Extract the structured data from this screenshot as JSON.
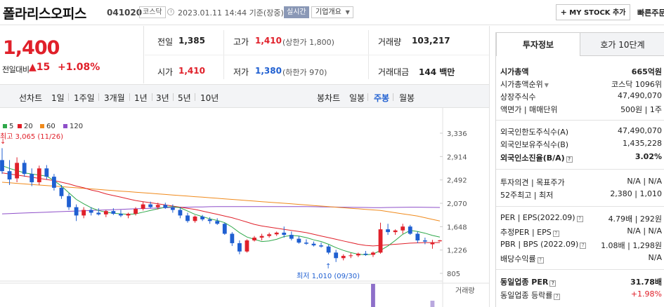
{
  "header": {
    "company_name": "폴라리스오피스",
    "stock_code": "041020",
    "market": "코스닥",
    "datetime": "2023.01.11 14:44 기준(장중)",
    "realtime": "실시간",
    "company_overview": "기업개요",
    "my_stock_button": "MY STOCK 추가",
    "quick_search": "빠른주문"
  },
  "price": {
    "current": "1,400",
    "change_label": "전일대비",
    "change_value": "▲15",
    "change_pct": "+1.08%"
  },
  "quote": {
    "prev_label": "전일",
    "prev_value": "1,385",
    "high_label": "고가",
    "high_value": "1,410",
    "upper_limit": "(상한가 1,800)",
    "volume_label": "거래량",
    "volume_value": "103,217",
    "open_label": "시가",
    "open_value": "1,410",
    "low_label": "저가",
    "low_value": "1,380",
    "lower_limit": "(하한가 970)",
    "amount_label": "거래대금",
    "amount_value": "144 백만"
  },
  "period_bar": {
    "line_chart_label": "선차트",
    "line_periods": [
      "1일",
      "1주일",
      "3개월",
      "1년",
      "3년",
      "5년",
      "10년"
    ],
    "candle_chart_label": "봉차트",
    "candle_periods": [
      "일봉",
      "주봉",
      "월봉"
    ],
    "selected_candle": "주봉"
  },
  "chart_data": {
    "type": "candlestick",
    "interval": "weekly",
    "ma_legend": [
      {
        "name": "5",
        "color": "#2ea84a"
      },
      {
        "name": "20",
        "color": "#e0202a"
      },
      {
        "name": "60",
        "color": "#f08a1c"
      },
      {
        "name": "120",
        "color": "#8e4fc9"
      }
    ],
    "y_ticks": [
      "3,336",
      "2,914",
      "2,492",
      "2,070",
      "1,648",
      "1,226",
      "805"
    ],
    "ylim": [
      805,
      3336
    ],
    "annotation_high": "최고 3,065 (11/26)",
    "annotation_low": "최저 1,010 (09/30)",
    "volume_label": "거래량",
    "candles": [
      {
        "o": 2850,
        "h": 3065,
        "l": 2600,
        "c": 2650
      },
      {
        "o": 2650,
        "h": 2850,
        "l": 2400,
        "c": 2500
      },
      {
        "o": 2520,
        "h": 2900,
        "l": 2450,
        "c": 2800
      },
      {
        "o": 2800,
        "h": 2850,
        "l": 2550,
        "c": 2600
      },
      {
        "o": 2600,
        "h": 2700,
        "l": 2380,
        "c": 2450
      },
      {
        "o": 2450,
        "h": 2750,
        "l": 2400,
        "c": 2700
      },
      {
        "o": 2700,
        "h": 2760,
        "l": 2500,
        "c": 2550
      },
      {
        "o": 2550,
        "h": 2600,
        "l": 2300,
        "c": 2350
      },
      {
        "o": 2350,
        "h": 2400,
        "l": 2150,
        "c": 2200
      },
      {
        "o": 2200,
        "h": 2250,
        "l": 1950,
        "c": 2000
      },
      {
        "o": 2000,
        "h": 2050,
        "l": 1750,
        "c": 1850
      },
      {
        "o": 1850,
        "h": 2000,
        "l": 1800,
        "c": 1950
      },
      {
        "o": 1950,
        "h": 2000,
        "l": 1850,
        "c": 1900
      },
      {
        "o": 1900,
        "h": 1980,
        "l": 1850,
        "c": 1870
      },
      {
        "o": 1870,
        "h": 1950,
        "l": 1820,
        "c": 1930
      },
      {
        "o": 1930,
        "h": 1980,
        "l": 1860,
        "c": 1880
      },
      {
        "o": 1880,
        "h": 1950,
        "l": 1820,
        "c": 1850
      },
      {
        "o": 1850,
        "h": 1900,
        "l": 1800,
        "c": 1880
      },
      {
        "o": 1880,
        "h": 2000,
        "l": 1850,
        "c": 1970
      },
      {
        "o": 1970,
        "h": 2100,
        "l": 1940,
        "c": 2050
      },
      {
        "o": 2050,
        "h": 2100,
        "l": 1980,
        "c": 2000
      },
      {
        "o": 2000,
        "h": 2080,
        "l": 1960,
        "c": 2040
      },
      {
        "o": 2040,
        "h": 2080,
        "l": 1970,
        "c": 1990
      },
      {
        "o": 1990,
        "h": 2050,
        "l": 1900,
        "c": 1950
      },
      {
        "o": 1950,
        "h": 2000,
        "l": 1800,
        "c": 1850
      },
      {
        "o": 1850,
        "h": 1900,
        "l": 1720,
        "c": 1750
      },
      {
        "o": 1750,
        "h": 1850,
        "l": 1720,
        "c": 1830
      },
      {
        "o": 1830,
        "h": 1860,
        "l": 1750,
        "c": 1780
      },
      {
        "o": 1780,
        "h": 1820,
        "l": 1700,
        "c": 1750
      },
      {
        "o": 1750,
        "h": 1800,
        "l": 1680,
        "c": 1700
      },
      {
        "o": 1700,
        "h": 1720,
        "l": 1500,
        "c": 1520
      },
      {
        "o": 1520,
        "h": 1550,
        "l": 1300,
        "c": 1350
      },
      {
        "o": 1350,
        "h": 1400,
        "l": 1150,
        "c": 1200
      },
      {
        "o": 1200,
        "h": 1420,
        "l": 1180,
        "c": 1400
      },
      {
        "o": 1400,
        "h": 1480,
        "l": 1380,
        "c": 1450
      },
      {
        "o": 1450,
        "h": 1520,
        "l": 1400,
        "c": 1480
      },
      {
        "o": 1480,
        "h": 1540,
        "l": 1450,
        "c": 1510
      },
      {
        "o": 1510,
        "h": 1560,
        "l": 1480,
        "c": 1540
      },
      {
        "o": 1540,
        "h": 1650,
        "l": 1450,
        "c": 1500
      },
      {
        "o": 1500,
        "h": 1560,
        "l": 1400,
        "c": 1430
      },
      {
        "o": 1430,
        "h": 1480,
        "l": 1340,
        "c": 1360
      },
      {
        "o": 1360,
        "h": 1420,
        "l": 1320,
        "c": 1340
      },
      {
        "o": 1340,
        "h": 1380,
        "l": 1290,
        "c": 1310
      },
      {
        "o": 1310,
        "h": 1360,
        "l": 1270,
        "c": 1290
      },
      {
        "o": 1290,
        "h": 1320,
        "l": 1150,
        "c": 1180
      },
      {
        "o": 1180,
        "h": 1230,
        "l": 1010,
        "c": 1080
      },
      {
        "o": 1080,
        "h": 1150,
        "l": 1040,
        "c": 1120
      },
      {
        "o": 1120,
        "h": 1170,
        "l": 1080,
        "c": 1130
      },
      {
        "o": 1130,
        "h": 1180,
        "l": 1100,
        "c": 1160
      },
      {
        "o": 1160,
        "h": 1210,
        "l": 1120,
        "c": 1140
      },
      {
        "o": 1140,
        "h": 1200,
        "l": 1100,
        "c": 1180
      },
      {
        "o": 1180,
        "h": 1720,
        "l": 1160,
        "c": 1600
      },
      {
        "o": 1600,
        "h": 1700,
        "l": 1500,
        "c": 1550
      },
      {
        "o": 1550,
        "h": 1600,
        "l": 1500,
        "c": 1580
      },
      {
        "o": 1580,
        "h": 1700,
        "l": 1520,
        "c": 1650
      },
      {
        "o": 1650,
        "h": 1680,
        "l": 1500,
        "c": 1520
      },
      {
        "o": 1520,
        "h": 1560,
        "l": 1350,
        "c": 1400
      },
      {
        "o": 1400,
        "h": 1450,
        "l": 1330,
        "c": 1380
      },
      {
        "o": 1330,
        "h": 1410,
        "l": 1250,
        "c": 1360
      },
      {
        "o": 1385,
        "h": 1410,
        "l": 1380,
        "c": 1400
      }
    ],
    "ma5": [
      2750,
      2700,
      2660,
      2620,
      2600,
      2580,
      2560,
      2480,
      2380,
      2260,
      2140,
      2060,
      1990,
      1940,
      1910,
      1890,
      1880,
      1870,
      1880,
      1910,
      1940,
      1970,
      2000,
      2010,
      1990,
      1930,
      1870,
      1830,
      1790,
      1760,
      1720,
      1640,
      1540,
      1460,
      1420,
      1380,
      1390,
      1420,
      1470,
      1490,
      1480,
      1450,
      1410,
      1380,
      1330,
      1270,
      1220,
      1180,
      1150,
      1140,
      1150,
      1220,
      1300,
      1400,
      1510,
      1580,
      1560,
      1530,
      1490,
      1460
    ],
    "ma20": [
      2620,
      2600,
      2580,
      2560,
      2540,
      2520,
      2500,
      2480,
      2450,
      2420,
      2380,
      2350,
      2310,
      2280,
      2240,
      2210,
      2180,
      2150,
      2120,
      2100,
      2080,
      2060,
      2040,
      2020,
      2000,
      1980,
      1960,
      1930,
      1900,
      1870,
      1840,
      1810,
      1770,
      1730,
      1690,
      1660,
      1640,
      1620,
      1600,
      1580,
      1560,
      1540,
      1510,
      1480,
      1450,
      1420,
      1390,
      1360,
      1330,
      1310,
      1300,
      1310,
      1320,
      1330,
      1340,
      1350,
      1355,
      1360,
      1360,
      1362
    ],
    "ma60": [
      2450,
      2440,
      2430,
      2420,
      2410,
      2400,
      2390,
      2380,
      2370,
      2360,
      2350,
      2340,
      2330,
      2320,
      2310,
      2300,
      2290,
      2280,
      2270,
      2260,
      2250,
      2240,
      2230,
      2220,
      2210,
      2200,
      2190,
      2180,
      2170,
      2160,
      2150,
      2140,
      2130,
      2120,
      2110,
      2100,
      2090,
      2080,
      2070,
      2060,
      2050,
      2040,
      2030,
      2020,
      2010,
      2000,
      1990,
      1980,
      1970,
      1960,
      1950,
      1940,
      1920,
      1900,
      1880,
      1860,
      1840,
      1810,
      1780,
      1750
    ],
    "ma120": [
      1880,
      1885,
      1890,
      1895,
      1900,
      1905,
      1910,
      1915,
      1920,
      1925,
      1930,
      1935,
      1940,
      1945,
      1950,
      1955,
      1960,
      1965,
      1970,
      1975,
      1980,
      1985,
      1990,
      1995,
      2000,
      2000,
      2005,
      2005,
      2008,
      2010,
      2010,
      2010,
      2010,
      2010,
      2010,
      2010,
      2010,
      2010,
      2010,
      2010,
      2010,
      2010,
      2008,
      2006,
      2004,
      2002,
      2000,
      1998,
      1996,
      1994,
      1992,
      1992,
      1994,
      1996,
      1998,
      2000,
      2000,
      1998,
      1996,
      1994
    ],
    "volume_tail": [
      0.55,
      0.15
    ]
  },
  "right_panel": {
    "tab_invest": "투자정보",
    "tab_hoga": "호가 10단계",
    "rows": [
      {
        "label": "시가총액",
        "value": "665억원",
        "bold": true
      },
      {
        "label": "시가총액순위",
        "chev": true,
        "value": "코스닥 1096위"
      },
      {
        "label": "상장주식수",
        "value": "47,490,070"
      },
      {
        "label": "액면가 | 매매단위",
        "value": "500원 | 1주"
      },
      {
        "label": "외국인한도주식수(A)",
        "value": "47,490,070"
      },
      {
        "label": "외국인보유주식수(B)",
        "value": "1,435,228"
      },
      {
        "label": "외국인소진율(B/A)",
        "q": true,
        "value": "3.02%",
        "bold": true
      },
      {
        "label": "투자의견 | 목표주가",
        "value": "N/A | N/A"
      },
      {
        "label": "52주최고 | 최저",
        "value": "2,380 | 1,010"
      },
      {
        "label": "PER | EPS(2022.09)",
        "q": true,
        "value": "4.79배 | 292원"
      },
      {
        "label": "추정PER | EPS",
        "q": true,
        "value": "N/A | N/A"
      },
      {
        "label": "PBR | BPS (2022.09)",
        "q": true,
        "value": "1.08배 | 1,298원"
      },
      {
        "label": "배당수익률",
        "q": true,
        "value": "N/A"
      },
      {
        "label": "동일업종 PER",
        "q": true,
        "value": "31.78배",
        "bold": true
      },
      {
        "label": "동일업종 등락률",
        "q": true,
        "value": "+1.98%",
        "red": true
      }
    ]
  }
}
